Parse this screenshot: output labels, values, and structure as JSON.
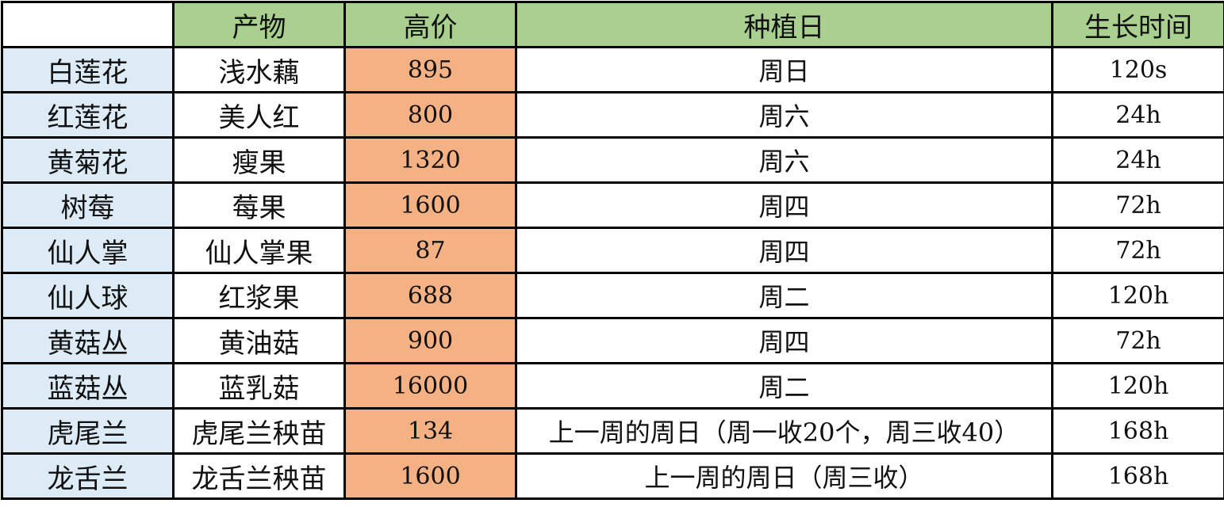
{
  "table": {
    "headers": {
      "corner": "",
      "product": "产物",
      "price": "高价",
      "plant_day": "种植日",
      "growth_time": "生长时间"
    },
    "rows": [
      {
        "name": "白莲花",
        "product": "浅水藕",
        "price": "895",
        "plant_day": "周日",
        "growth_time": "120s"
      },
      {
        "name": "红莲花",
        "product": "美人红",
        "price": "800",
        "plant_day": "周六",
        "growth_time": "24h"
      },
      {
        "name": "黄菊花",
        "product": "瘦果",
        "price": "1320",
        "plant_day": "周六",
        "growth_time": "24h"
      },
      {
        "name": "树莓",
        "product": "莓果",
        "price": "1600",
        "plant_day": "周四",
        "growth_time": "72h"
      },
      {
        "name": "仙人掌",
        "product": "仙人掌果",
        "price": "87",
        "plant_day": "周四",
        "growth_time": "72h"
      },
      {
        "name": "仙人球",
        "product": "红浆果",
        "price": "688",
        "plant_day": "周二",
        "growth_time": "120h"
      },
      {
        "name": "黄菇丛",
        "product": "黄油菇",
        "price": "900",
        "plant_day": "周四",
        "growth_time": "72h"
      },
      {
        "name": "蓝菇丛",
        "product": "蓝乳菇",
        "price": "16000",
        "plant_day": "周二",
        "growth_time": "120h"
      },
      {
        "name": "虎尾兰",
        "product": "虎尾兰秧苗",
        "price": "134",
        "plant_day": "上一周的周日（周一收20个，周三收40）",
        "growth_time": "168h"
      },
      {
        "name": "龙舌兰",
        "product": "龙舌兰秧苗",
        "price": "1600",
        "plant_day": "上一周的周日（周三收）",
        "growth_time": "168h"
      }
    ]
  },
  "colors": {
    "header_bg": "#a9d08e",
    "name_col_bg": "#ddebf7",
    "price_col_bg": "#f4b183",
    "grid": "#000000"
  }
}
